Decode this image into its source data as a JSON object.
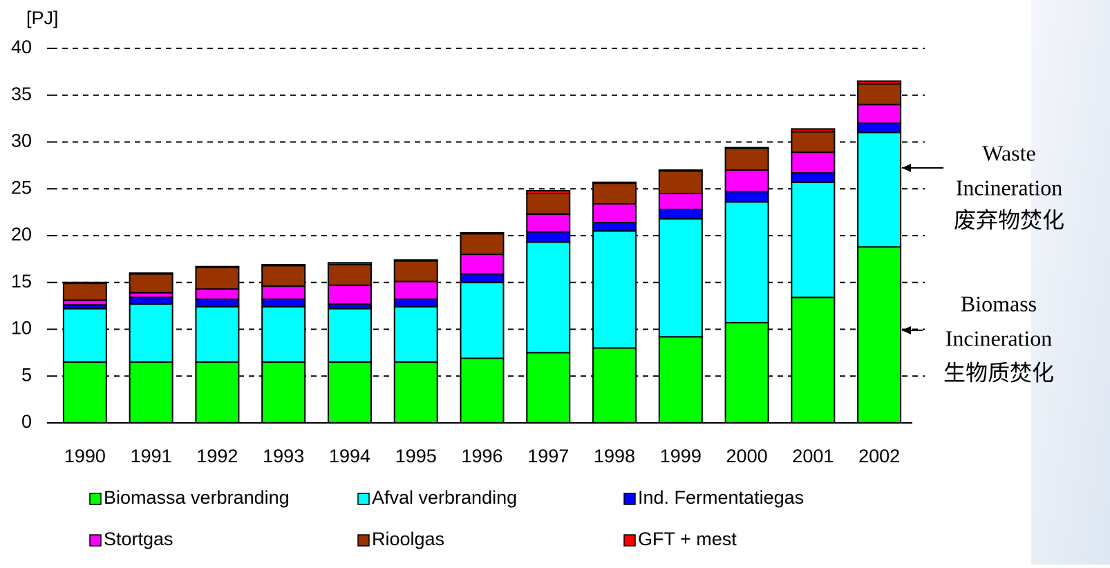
{
  "chart_data": {
    "type": "stacked_bar",
    "y_label": "[PJ]",
    "categories": [
      "1990",
      "1991",
      "1992",
      "1993",
      "1994",
      "1995",
      "1996",
      "1997",
      "1998",
      "1999",
      "2000",
      "2001",
      "2002"
    ],
    "series": [
      {
        "name": "Biomassa verbranding",
        "color": "#00ff00",
        "values": [
          6.5,
          6.5,
          6.5,
          6.5,
          6.5,
          6.5,
          6.9,
          7.5,
          8.0,
          9.2,
          10.7,
          13.4,
          18.8
        ]
      },
      {
        "name": "Afval verbranding",
        "color": "#00ffff",
        "values": [
          5.7,
          6.2,
          5.9,
          5.9,
          5.7,
          5.9,
          8.1,
          11.8,
          12.5,
          12.6,
          12.9,
          12.3,
          12.2
        ]
      },
      {
        "name": "Ind. Fermentatiegas",
        "color": "#0000ff",
        "values": [
          0.4,
          0.7,
          0.8,
          0.8,
          0.5,
          0.8,
          0.9,
          1.1,
          0.9,
          1.0,
          1.1,
          1.0,
          1.0
        ]
      },
      {
        "name": "Stortgas",
        "color": "#ff00ff",
        "values": [
          0.5,
          0.5,
          1.1,
          1.4,
          2.0,
          1.9,
          2.1,
          1.9,
          2.0,
          1.7,
          2.3,
          2.2,
          2.0
        ]
      },
      {
        "name": "Rioolgas",
        "color": "#993300",
        "values": [
          1.8,
          2.0,
          2.3,
          2.2,
          2.2,
          2.2,
          2.2,
          2.2,
          2.2,
          2.4,
          2.3,
          2.2,
          2.2
        ]
      },
      {
        "name": "GFT + mest",
        "color": "#ff0000",
        "values": [
          0.1,
          0.1,
          0.1,
          0.1,
          0.2,
          0.1,
          0.1,
          0.3,
          0.1,
          0.1,
          0.1,
          0.3,
          0.3
        ]
      }
    ],
    "ylim": [
      0,
      40
    ],
    "yticks": [
      0,
      5,
      10,
      15,
      20,
      25,
      30,
      35,
      40
    ],
    "grid": true,
    "annotations": [
      {
        "lines": [
          "Waste",
          "Incineration",
          "废弃物焚化"
        ]
      },
      {
        "lines": [
          "Biomass",
          "Incineration",
          "生物质焚化"
        ]
      }
    ]
  }
}
